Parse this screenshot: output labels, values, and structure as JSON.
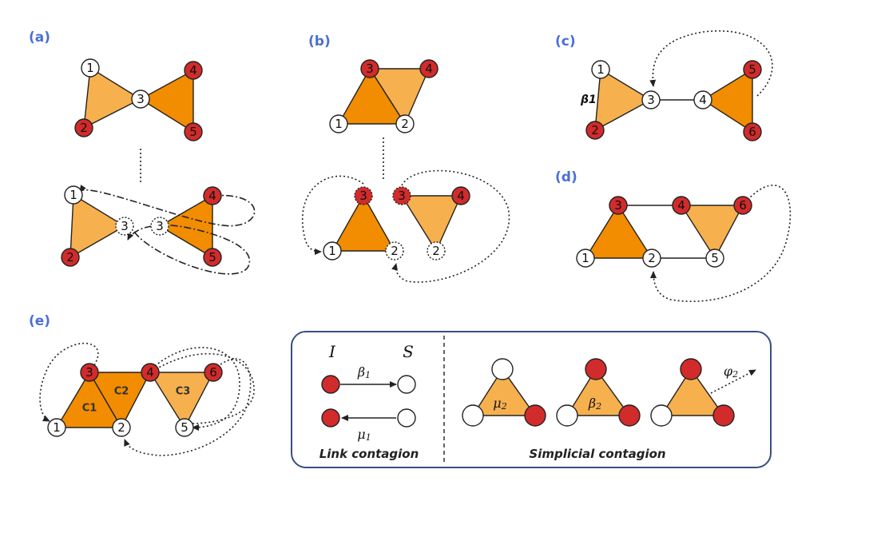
{
  "panels": {
    "a": "(a)",
    "b": "(b)",
    "c": "(c)",
    "d": "(d)",
    "e": "(e)"
  },
  "node_labels": {
    "n1": "1",
    "n2": "2",
    "n3": "3",
    "n4": "4",
    "n5": "5",
    "n6": "6"
  },
  "panel_c": {
    "beta_label": "β1"
  },
  "panel_e": {
    "c1": "C1",
    "c2": "C2",
    "c3": "C3"
  },
  "legend": {
    "infected": "I",
    "susceptible": "S",
    "beta1_base": "β",
    "beta1_sub": "1",
    "mu1_base": "μ",
    "mu1_sub": "1",
    "mu2_base": "μ",
    "mu2_sub": "2",
    "beta2_base": "β",
    "beta2_sub": "2",
    "phi2_base": "φ",
    "phi2_sub": "2",
    "link_caption": "Link contagion",
    "simplicial_caption": "Simplicial contagion"
  },
  "colors": {
    "infected": "#d12b2b",
    "susceptible": "#ffffff",
    "triangle_dark": "#f28c00",
    "triangle_light": "#f7b04e",
    "panel_label": "#4a6fd6",
    "legend_border": "#3a4d86"
  }
}
